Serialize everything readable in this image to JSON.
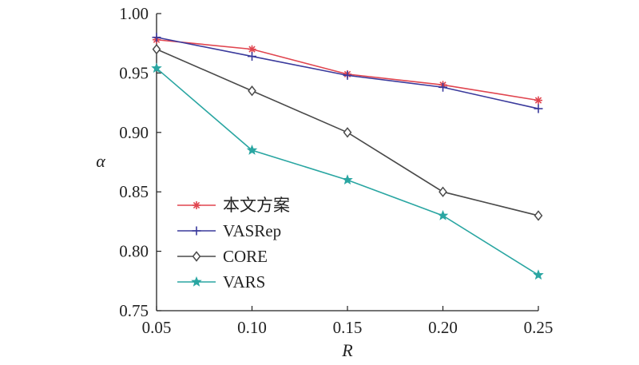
{
  "chart_data": {
    "type": "line",
    "title": "",
    "xlabel": "R",
    "ylabel": "α",
    "x": [
      0.05,
      0.1,
      0.15,
      0.2,
      0.25
    ],
    "x_tick_labels": [
      "0.05",
      "0.10",
      "0.15",
      "0.20",
      "0.25"
    ],
    "y_tick_labels": [
      "0.75",
      "0.80",
      "0.85",
      "0.90",
      "0.95",
      "1.00"
    ],
    "xlim": [
      0.05,
      0.25
    ],
    "ylim": [
      0.75,
      1.0
    ],
    "grid": false,
    "legend_position": "lower-left",
    "series": [
      {
        "name": "本文方案",
        "values": [
          0.978,
          0.97,
          0.949,
          0.94,
          0.927
        ],
        "color": "#e0454f",
        "marker": "asterisk"
      },
      {
        "name": "VASRep",
        "values": [
          0.98,
          0.964,
          0.948,
          0.938,
          0.92
        ],
        "color": "#3a3a9c",
        "marker": "plus"
      },
      {
        "name": "CORE",
        "values": [
          0.97,
          0.935,
          0.9,
          0.85,
          0.83
        ],
        "color": "#4a4a4a",
        "marker": "diamond"
      },
      {
        "name": "VARS",
        "values": [
          0.954,
          0.885,
          0.86,
          0.83,
          0.78
        ],
        "color": "#2aa6a2",
        "marker": "star"
      }
    ]
  }
}
